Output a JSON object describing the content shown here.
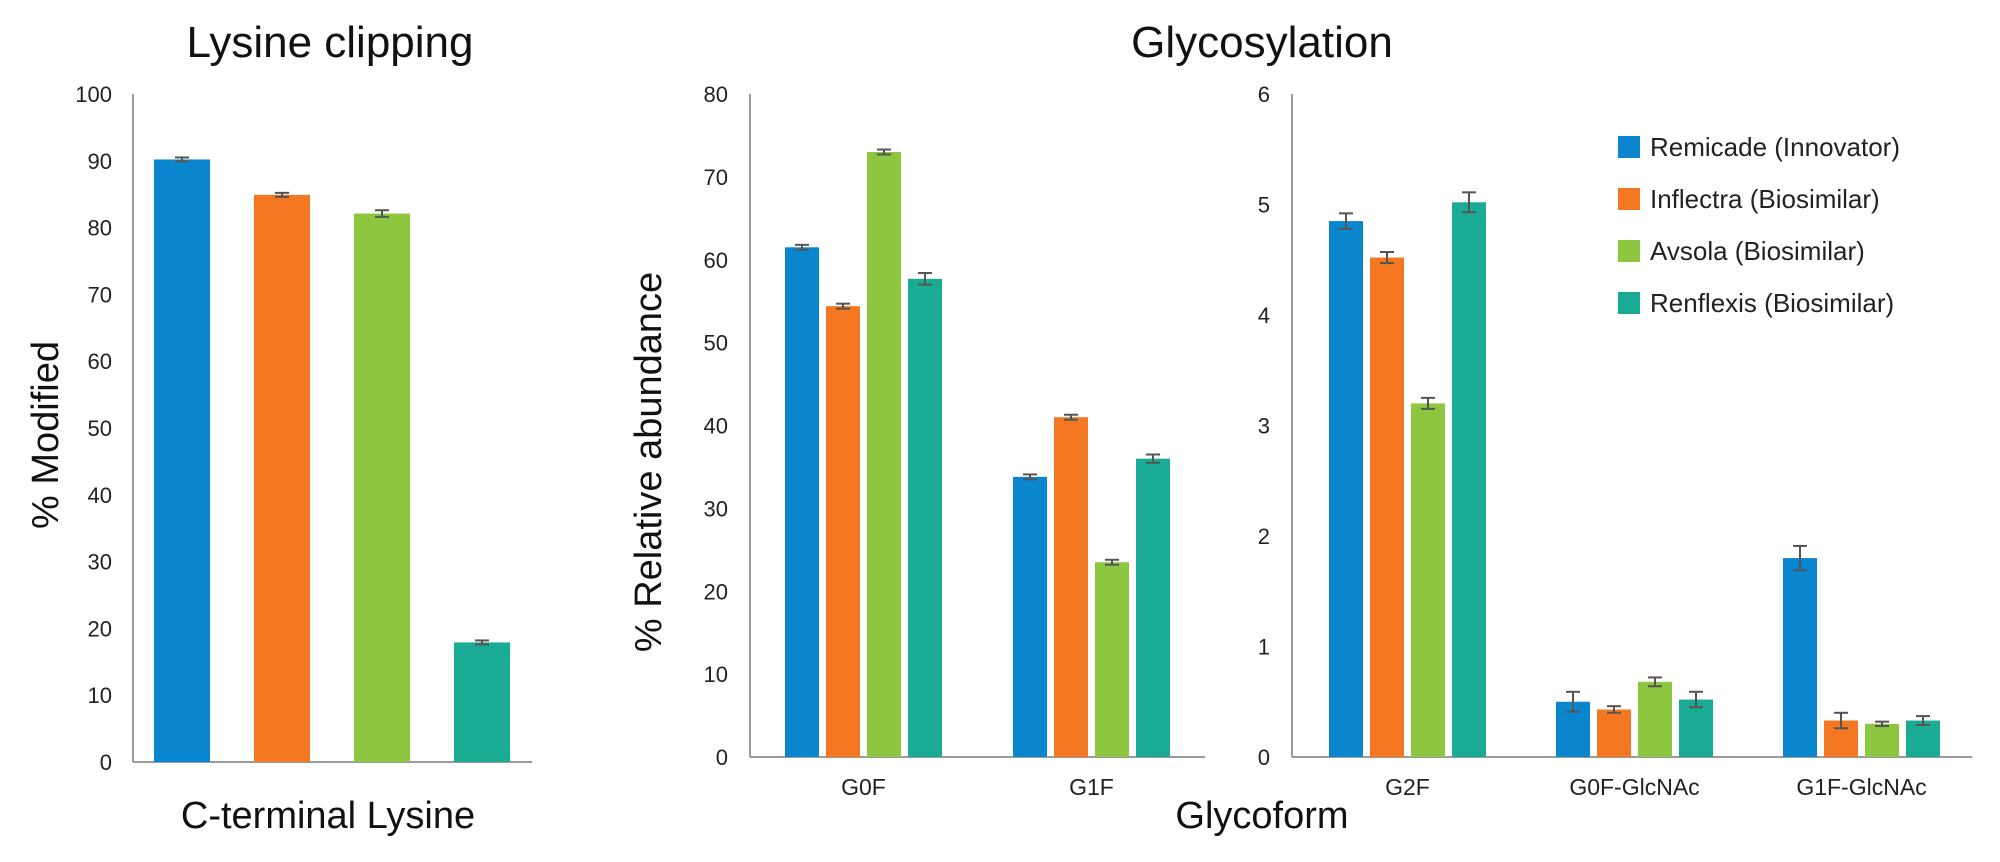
{
  "titles": {
    "lysine": "Lysine clipping",
    "glyco": "Glycosylation"
  },
  "axes": {
    "y_lysine": "% Modified",
    "y_glyco": "% Relative abundance",
    "x_lysine": "C-terminal Lysine",
    "x_glyco": "Glycoform"
  },
  "legend": [
    {
      "label": "Remicade (Innovator)",
      "color": "#0a86cf"
    },
    {
      "label": "Inflectra (Biosimilar)",
      "color": "#f47721"
    },
    {
      "label": "Avsola (Biosimilar)",
      "color": "#8dc63f"
    },
    {
      "label": "Renflexis (Biosimilar)",
      "color": "#1aab95"
    }
  ],
  "chart_data": [
    {
      "type": "bar",
      "title": "Lysine clipping",
      "xlabel": "C-terminal Lysine",
      "ylabel": "% Modified",
      "ylim": [
        0,
        100
      ],
      "yticks": [
        "0",
        "10",
        "20",
        "30",
        "40",
        "50",
        "60",
        "70",
        "80",
        "90",
        "100"
      ],
      "categories": [
        ""
      ],
      "series": [
        {
          "name": "Remicade (Innovator)",
          "values": [
            90.2
          ],
          "err": [
            0.3
          ]
        },
        {
          "name": "Inflectra (Biosimilar)",
          "values": [
            84.9
          ],
          "err": [
            0.3
          ]
        },
        {
          "name": "Avsola (Biosimilar)",
          "values": [
            82.1
          ],
          "err": [
            0.5
          ]
        },
        {
          "name": "Renflexis (Biosimilar)",
          "values": [
            17.9
          ],
          "err": [
            0.3
          ]
        }
      ]
    },
    {
      "type": "bar",
      "title": "Glycosylation",
      "xlabel": "Glycoform",
      "ylabel": "% Relative abundance",
      "ylim": [
        0,
        80
      ],
      "yticks": [
        "0",
        "10",
        "20",
        "30",
        "40",
        "50",
        "60",
        "70",
        "80"
      ],
      "categories": [
        "G0F",
        "G1F"
      ],
      "series": [
        {
          "name": "Remicade (Innovator)",
          "values": [
            61.5,
            33.8
          ],
          "err": [
            0.3,
            0.3
          ]
        },
        {
          "name": "Inflectra (Biosimilar)",
          "values": [
            54.4,
            41.0
          ],
          "err": [
            0.3,
            0.3
          ]
        },
        {
          "name": "Avsola (Biosimilar)",
          "values": [
            73.0,
            23.5
          ],
          "err": [
            0.3,
            0.3
          ]
        },
        {
          "name": "Renflexis (Biosimilar)",
          "values": [
            57.7,
            36.0
          ],
          "err": [
            0.7,
            0.5
          ]
        }
      ]
    },
    {
      "type": "bar",
      "title": "Glycosylation",
      "xlabel": "Glycoform",
      "ylabel": "",
      "ylim": [
        0,
        6
      ],
      "yticks": [
        "0",
        "1",
        "2",
        "3",
        "4",
        "5",
        "6"
      ],
      "categories": [
        "G2F",
        "G0F-GlcNAc",
        "G1F-GlcNAc"
      ],
      "series": [
        {
          "name": "Remicade (Innovator)",
          "values": [
            4.85,
            0.5,
            1.8
          ],
          "err": [
            0.07,
            0.09,
            0.11
          ]
        },
        {
          "name": "Inflectra (Biosimilar)",
          "values": [
            4.52,
            0.43,
            0.33
          ],
          "err": [
            0.05,
            0.03,
            0.07
          ]
        },
        {
          "name": "Avsola (Biosimilar)",
          "values": [
            3.2,
            0.68,
            0.3
          ],
          "err": [
            0.05,
            0.04,
            0.02
          ]
        },
        {
          "name": "Renflexis (Biosimilar)",
          "values": [
            5.02,
            0.52,
            0.33
          ],
          "err": [
            0.09,
            0.07,
            0.04
          ]
        }
      ]
    }
  ]
}
